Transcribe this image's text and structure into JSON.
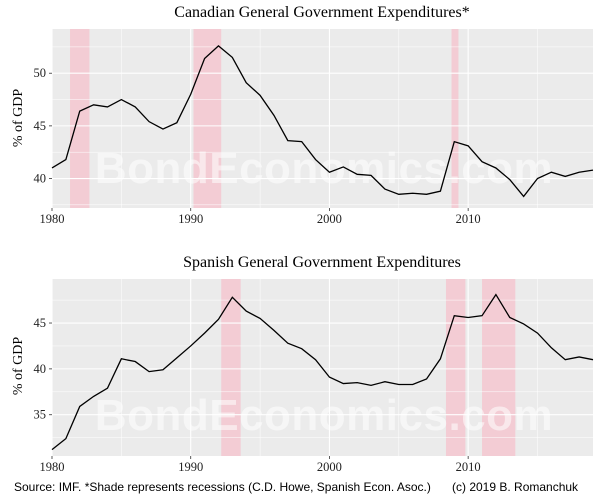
{
  "chart_data": [
    {
      "type": "line",
      "title": "Canadian General Government Expenditures*",
      "xlabel": "",
      "ylabel": "% of GDP",
      "xlim": [
        1980,
        2019
      ],
      "ylim": [
        37.2,
        54.2
      ],
      "x_ticks": [
        1980,
        1990,
        2000,
        2010
      ],
      "y_ticks": [
        40,
        45,
        50
      ],
      "grid": true,
      "recession_color": "#f4c7d0",
      "recessions": [
        [
          1981.3,
          1982.7
        ],
        [
          1990.2,
          1992.2
        ],
        [
          2008.8,
          2009.3
        ]
      ],
      "series": [
        {
          "name": "Canada",
          "color": "#000000",
          "x": [
            1980,
            1981,
            1982,
            1983,
            1984,
            1985,
            1986,
            1987,
            1988,
            1989,
            1990,
            1991,
            1992,
            1993,
            1994,
            1995,
            1996,
            1997,
            1998,
            1999,
            2000,
            2001,
            2002,
            2003,
            2004,
            2005,
            2006,
            2007,
            2008,
            2009,
            2010,
            2011,
            2012,
            2013,
            2014,
            2015,
            2016,
            2017,
            2018,
            2019
          ],
          "values": [
            41.0,
            41.8,
            46.4,
            47.0,
            46.8,
            47.5,
            46.8,
            45.4,
            44.7,
            45.3,
            48.0,
            51.4,
            52.6,
            51.5,
            49.1,
            47.9,
            46.0,
            43.6,
            43.5,
            41.8,
            40.6,
            41.1,
            40.4,
            40.3,
            39.0,
            38.5,
            38.6,
            38.5,
            38.8,
            43.5,
            43.1,
            41.6,
            41.0,
            39.9,
            38.3,
            40.0,
            40.6,
            40.2,
            40.6,
            40.8
          ]
        }
      ]
    },
    {
      "type": "line",
      "title": "Spanish General Government Expenditures",
      "xlabel": "",
      "ylabel": "% of GDP",
      "xlim": [
        1980,
        2019
      ],
      "ylim": [
        30.5,
        49.8
      ],
      "x_ticks": [
        1980,
        1990,
        2000,
        2010
      ],
      "y_ticks": [
        35,
        40,
        45
      ],
      "grid": true,
      "recession_color": "#f4c7d0",
      "recessions": [
        [
          1992.2,
          1993.6
        ],
        [
          2008.4,
          2009.8
        ],
        [
          2011.0,
          2013.4
        ]
      ],
      "series": [
        {
          "name": "Spain",
          "color": "#000000",
          "x": [
            1980,
            1981,
            1982,
            1983,
            1984,
            1985,
            1986,
            1987,
            1988,
            1989,
            1990,
            1991,
            1992,
            1993,
            1994,
            1995,
            1996,
            1997,
            1998,
            1999,
            2000,
            2001,
            2002,
            2003,
            2004,
            2005,
            2006,
            2007,
            2008,
            2009,
            2010,
            2011,
            2012,
            2013,
            2014,
            2015,
            2016,
            2017,
            2018,
            2019
          ],
          "values": [
            31.2,
            32.4,
            35.9,
            37.0,
            37.9,
            41.1,
            40.8,
            39.7,
            39.9,
            41.2,
            42.5,
            43.9,
            45.4,
            47.8,
            46.3,
            45.5,
            44.2,
            42.8,
            42.2,
            41.0,
            39.1,
            38.4,
            38.5,
            38.2,
            38.6,
            38.3,
            38.3,
            38.9,
            41.1,
            45.8,
            45.6,
            45.8,
            48.1,
            45.6,
            44.9,
            43.9,
            42.3,
            41.0,
            41.3,
            41.0
          ]
        }
      ]
    }
  ],
  "watermark": "BondEconomics.com",
  "caption": {
    "source": "Source: IMF. *Shade represents recessions (C.D. Howe, Spanish Econ. Asoc.)",
    "copyright": "(c) 2019 B. Romanchuk"
  },
  "colors": {
    "panel_bg": "#ebebeb",
    "grid": "#ffffff",
    "line": "#000000",
    "recession": "#f4c7d0"
  }
}
